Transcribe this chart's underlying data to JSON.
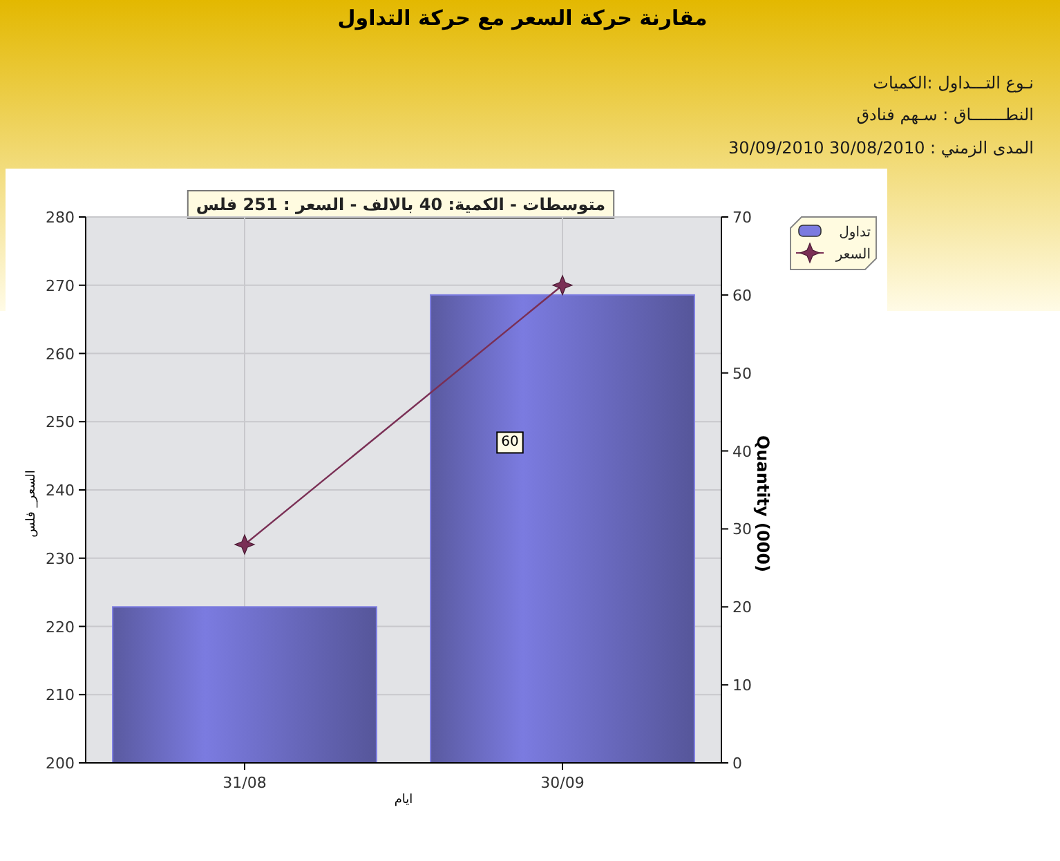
{
  "chart_data": {
    "type": "bar",
    "title": "مقارنة حركة السعر مع حركة التداول",
    "annotations": [
      "نـوع التـــداول :الكميات",
      "النطـــــــاق : سـهم   فنادق",
      "المدى الزمني :  30/08/2010 30/09/2010",
      "متوسطات - الكمية: 40 بالالف  - السعر : 251 فلس"
    ],
    "xlabel": "ايام",
    "ylabel": "السعر_ فلس",
    "y2label": "Quantity (000)",
    "categories": [
      "31/08",
      "30/09"
    ],
    "series": [
      {
        "axis": "y2",
        "name": "تداول",
        "color": "#7b7be0",
        "values": [
          20,
          60
        ],
        "value_labels": [
          null,
          "60"
        ]
      },
      {
        "type": "line",
        "axis": "y",
        "name": "السعر",
        "color": "#7a2f55",
        "marker": "star",
        "values": [
          232,
          270
        ]
      }
    ],
    "ylim": [
      200,
      280
    ],
    "yticks": [
      200,
      210,
      220,
      230,
      240,
      250,
      260,
      270,
      280
    ],
    "y2lim": [
      0,
      70
    ],
    "y2ticks": [
      0,
      10,
      20,
      30,
      40,
      50,
      60,
      70
    ],
    "grid": true,
    "legend": "top right"
  }
}
